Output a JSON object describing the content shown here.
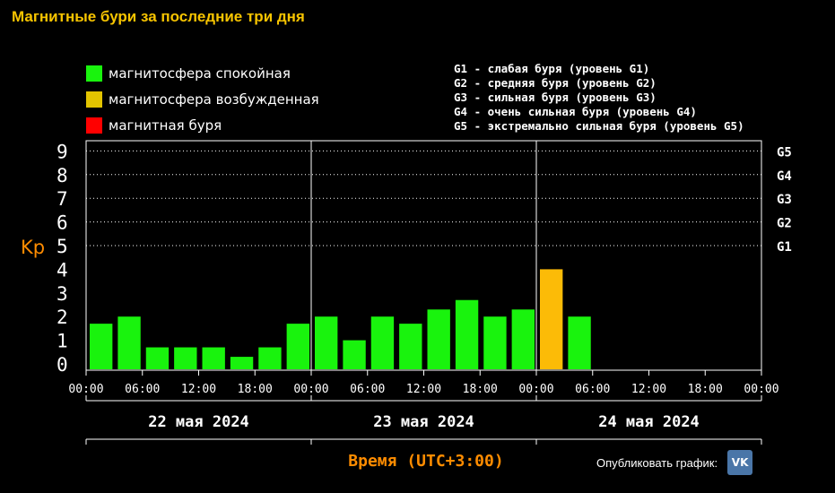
{
  "title": "Магнитные бури за последние три дня",
  "legend": [
    {
      "label": "магнитосфера спокойная",
      "color": "#19f30d"
    },
    {
      "label": "магнитосфера возбужденная",
      "color": "#e8c000"
    },
    {
      "label": "магнитная буря",
      "color": "#ff0000"
    }
  ],
  "storm_levels": [
    "G1 - слабая буря (уровень G1)",
    "G2 - средняя буря (уровень G2)",
    "G3 - сильная буря (уровень G3)",
    "G4 - очень сильная буря (уровень G4)",
    "G5 - экстремально сильная буря (уровень G5)"
  ],
  "publish": {
    "label": "Опубликовать график:",
    "icon": "vk-icon",
    "icon_text": "VK"
  },
  "chart_data": {
    "type": "bar",
    "ylabel": "Kp",
    "xlabel": "Время (UTC+3:00)",
    "ylim": [
      0,
      9
    ],
    "y_ticks": [
      "0",
      "1",
      "2",
      "3",
      "4",
      "5",
      "6",
      "7",
      "8",
      "9"
    ],
    "right_ticks": [
      {
        "label": "G1",
        "value": 5
      },
      {
        "label": "G2",
        "value": 6
      },
      {
        "label": "G3",
        "value": 7
      },
      {
        "label": "G4",
        "value": 8
      },
      {
        "label": "G5",
        "value": 9
      }
    ],
    "x_tick_labels": [
      "00:00",
      "06:00",
      "12:00",
      "18:00",
      "00:00",
      "06:00",
      "12:00",
      "18:00",
      "00:00",
      "06:00",
      "12:00",
      "18:00",
      "00:00"
    ],
    "days": [
      "22 мая 2024",
      "23 мая 2024",
      "24 мая 2024"
    ],
    "interval_hours": 3,
    "values": [
      1.7,
      2.0,
      0.7,
      0.7,
      0.7,
      0.3,
      0.7,
      1.7,
      2.0,
      1.0,
      2.0,
      1.7,
      2.3,
      2.7,
      2.0,
      2.3,
      4.0,
      2.0
    ],
    "colors": {
      "quiet": "#19f30d",
      "disturbed": "#fcbb07",
      "storm": "#ff0000"
    },
    "gridlines": "dotted",
    "legend_position": "top-left"
  }
}
